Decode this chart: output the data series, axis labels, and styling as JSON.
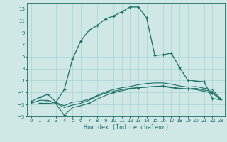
{
  "xlabel": "Humidex (Indice chaleur)",
  "bg_color": "#cfe8e6",
  "line_color": "#1a6e65",
  "ylim": [
    -5,
    14
  ],
  "xlim": [
    -0.5,
    23.5
  ],
  "yticks": [
    -5,
    -3,
    -1,
    1,
    3,
    5,
    7,
    9,
    11,
    13
  ],
  "xticks": [
    0,
    1,
    2,
    3,
    4,
    5,
    6,
    7,
    8,
    9,
    10,
    11,
    12,
    13,
    14,
    15,
    16,
    17,
    18,
    19,
    20,
    21,
    22,
    23
  ],
  "curve1_x": [
    0,
    1,
    2,
    3,
    4,
    5,
    6,
    7,
    8,
    9,
    10,
    11,
    12,
    13,
    14,
    15,
    16,
    17,
    18,
    19,
    20,
    21,
    22,
    23
  ],
  "curve1_y": [
    -2.5,
    -1.8,
    -1.3,
    -2.6,
    -0.5,
    4.6,
    7.6,
    9.4,
    10.2,
    11.3,
    11.8,
    12.5,
    13.3,
    13.3,
    11.5,
    5.2,
    5.3,
    5.6,
    3.2,
    1.1,
    0.9,
    0.8,
    -2.0,
    -2.2
  ],
  "curve2_x": [
    0,
    1,
    2,
    3,
    4,
    5,
    6,
    7,
    8,
    9,
    10,
    11,
    12,
    13,
    14,
    15,
    16,
    17,
    18,
    19,
    20,
    21,
    22,
    23
  ],
  "curve2_y": [
    -2.8,
    -2.3,
    -2.3,
    -2.8,
    -3.5,
    -3.1,
    -2.8,
    -2.3,
    -1.6,
    -1.1,
    -0.8,
    -0.5,
    -0.3,
    -0.2,
    -0.1,
    -0.0,
    0.0,
    -0.2,
    -0.4,
    -0.4,
    -0.3,
    -0.6,
    -0.8,
    -2.2
  ],
  "curve3_x": [
    1,
    2,
    3,
    4,
    5,
    6,
    7,
    8,
    9,
    10,
    11,
    12,
    13,
    14,
    15,
    16,
    17,
    18,
    19,
    20,
    21,
    22,
    23
  ],
  "curve3_y": [
    -2.8,
    -2.8,
    -2.9,
    -4.8,
    -3.5,
    -3.2,
    -2.8,
    -2.1,
    -1.5,
    -1.0,
    -0.7,
    -0.4,
    -0.2,
    -0.1,
    0.0,
    0.1,
    -0.1,
    -0.3,
    -0.4,
    -0.5,
    -0.8,
    -1.1,
    -2.2
  ],
  "curve4_x": [
    1,
    2,
    3,
    4,
    5,
    6,
    7,
    8,
    9,
    10,
    11,
    12,
    13,
    14,
    15,
    16,
    17,
    18,
    19,
    20,
    21,
    22,
    23
  ],
  "curve4_y": [
    -2.6,
    -2.5,
    -2.7,
    -3.2,
    -2.6,
    -2.5,
    -2.1,
    -1.5,
    -0.9,
    -0.5,
    -0.2,
    0.0,
    0.3,
    0.5,
    0.6,
    0.6,
    0.4,
    0.1,
    -0.1,
    -0.0,
    -0.3,
    -0.5,
    -2.0
  ]
}
